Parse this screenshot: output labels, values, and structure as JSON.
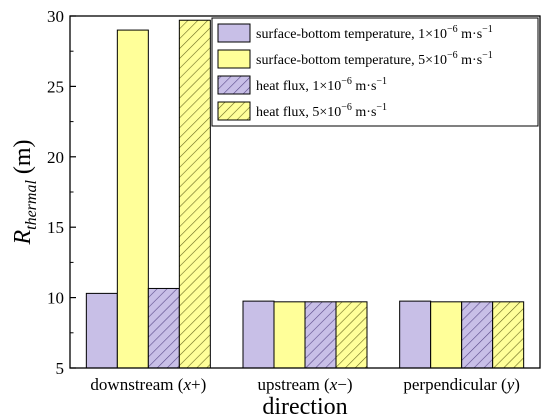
{
  "chart_data": {
    "type": "bar",
    "xlabel": "direction",
    "ylabel_main": "R",
    "ylabel_sub": "thermal",
    "ylabel_unit": " (m)",
    "ylim": [
      5,
      30
    ],
    "yticks": [
      "5",
      "10",
      "15",
      "20",
      "25",
      "30"
    ],
    "categories": [
      {
        "text": "downstream (",
        "var": "x",
        "tail": "+)"
      },
      {
        "text": "upstream (",
        "var": "x",
        "tail": "−)"
      },
      {
        "text": "perpendicular (",
        "var": "y",
        "tail": ")"
      }
    ],
    "series": [
      {
        "name": "surface-bottom temperature, 1×10",
        "exp": "−6",
        "unit": " m·s",
        "uexp": "−1",
        "color": "#c8bfe7",
        "hatch": false,
        "values": [
          10.3,
          9.75,
          9.75
        ]
      },
      {
        "name": "surface-bottom temperature, 5×10",
        "exp": "−6",
        "unit": " m·s",
        "uexp": "−1",
        "color": "#ffff99",
        "hatch": false,
        "values": [
          29.0,
          9.7,
          9.7
        ]
      },
      {
        "name": "heat flux, 1×10",
        "exp": "−6",
        "unit": " m·s",
        "uexp": "−1",
        "color": "#c8bfe7",
        "hatch": true,
        "values": [
          10.65,
          9.7,
          9.7
        ]
      },
      {
        "name": "heat flux, 5×10",
        "exp": "−6",
        "unit": " m·s",
        "uexp": "−1",
        "color": "#ffff99",
        "hatch": true,
        "values": [
          29.7,
          9.7,
          9.7
        ]
      }
    ],
    "legend_position": "top-right",
    "grid": false
  }
}
